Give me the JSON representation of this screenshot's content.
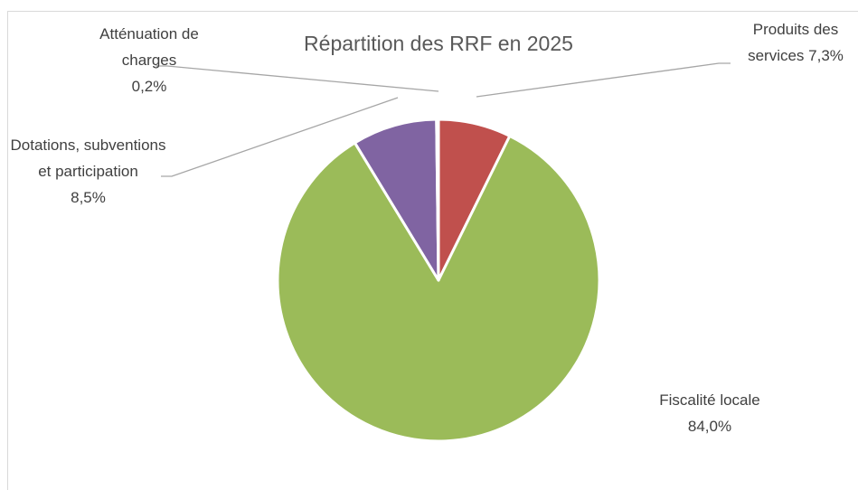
{
  "chart_data": {
    "type": "pie",
    "title": "Répartition des RRF en 2025",
    "categories": [
      "Produits des services",
      "Fiscalité locale",
      "Dotations, subventions et participation",
      "Atténuation de charges"
    ],
    "values": [
      7.3,
      84.0,
      8.5,
      0.2
    ],
    "value_labels": [
      "7,3%",
      "84,0%",
      "8,5%",
      "0,2%"
    ],
    "colors": [
      "#c0504d",
      "#9bbb59",
      "#8064a2",
      "#4f81bd"
    ]
  }
}
